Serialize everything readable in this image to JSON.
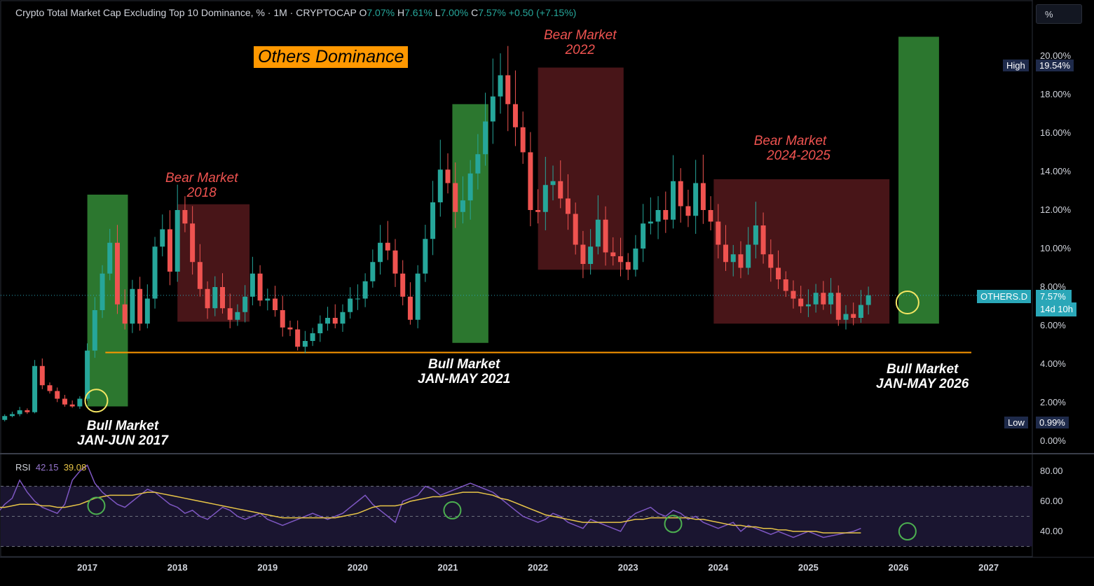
{
  "header": {
    "symbol_desc": "Crypto Total Market Cap Excluding Top 10 Dominance, % · 1M · CRYPTOCAP",
    "o_label": "O",
    "o_value": "7.07%",
    "h_label": "H",
    "h_value": "7.61%",
    "l_label": "L",
    "l_value": "7.00%",
    "c_label": "C",
    "c_value": "7.57%",
    "change": "+0.50 (+7.15%)"
  },
  "scale_button": "%",
  "title_badge": "Others Dominance",
  "annotations": {
    "bear_2018": [
      "Bear Market",
      "2018"
    ],
    "bear_2022": [
      "Bear Market",
      "2022"
    ],
    "bear_2024": [
      "Bear Market",
      "2024-2025"
    ],
    "bull_2017": [
      "Bull Market",
      "JAN-JUN 2017"
    ],
    "bull_2021": [
      "Bull Market",
      "JAN-MAY 2021"
    ],
    "bull_2026": [
      "Bull Market",
      "JAN-MAY 2026"
    ]
  },
  "tags": {
    "high_label": "High",
    "high_value": "19.54%",
    "low_label": "Low",
    "low_value": "0.99%",
    "symbol": "OTHERS.D",
    "last_value": "7.57%",
    "countdown": "14d 10h"
  },
  "rsi": {
    "label": "RSI",
    "value": "42.15",
    "ma_value": "39.08"
  },
  "colors": {
    "up": "#26a69a",
    "down": "#ef5350",
    "bull_zone": "#2e7d32",
    "bear_zone": "#5a1a1e",
    "support": "#ff9800",
    "rsi": "#7e57c2",
    "rsi_ma": "#e8c547",
    "circle": "#f5e663"
  },
  "chart_data": [
    {
      "type": "candlestick",
      "title": "Crypto Total Market Cap Excluding Top 10 Dominance",
      "interval": "1M",
      "y_unit": "%",
      "ylim": [
        0,
        21
      ],
      "y_ticks": [
        "20.00%",
        "18.00%",
        "16.00%",
        "14.00%",
        "12.00%",
        "10.00%",
        "8.00%",
        "6.00%",
        "4.00%",
        "2.00%",
        "0.00%"
      ],
      "x_ticks": [
        "2017",
        "2018",
        "2019",
        "2020",
        "2021",
        "2022",
        "2023",
        "2024",
        "2025",
        "2026",
        "2027"
      ],
      "x_tick_values": [
        2017,
        2018,
        2019,
        2020,
        2021,
        2022,
        2023,
        2024,
        2025,
        2026,
        2027
      ],
      "start": 2016.0,
      "closes": [
        1.1,
        1.3,
        1.4,
        1.6,
        1.5,
        3.9,
        2.9,
        2.6,
        2.2,
        1.9,
        1.8,
        2.2,
        4.7,
        6.8,
        8.7,
        10.3,
        7.1,
        6.1,
        7.9,
        6.1,
        7.4,
        10.1,
        11.0,
        8.8,
        12.0,
        11.3,
        9.3,
        7.9,
        6.9,
        8.0,
        6.9,
        6.3,
        6.7,
        7.5,
        8.7,
        7.3,
        7.4,
        6.8,
        5.9,
        5.8,
        4.9,
        5.2,
        5.6,
        6.1,
        6.4,
        6.1,
        6.7,
        7.4,
        7.4,
        8.3,
        9.3,
        10.3,
        9.9,
        8.7,
        7.5,
        6.3,
        8.7,
        10.5,
        12.4,
        14.1,
        13.4,
        11.9,
        12.5,
        13.9,
        14.9,
        16.6,
        17.9,
        19.0,
        17.5,
        16.3,
        15.0,
        12.0,
        11.9,
        13.3,
        13.5,
        12.6,
        11.8,
        10.2,
        9.2,
        10.1,
        11.5,
        9.8,
        9.6,
        9.3,
        8.9,
        10.0,
        11.3,
        11.4,
        12.0,
        11.5,
        13.5,
        12.2,
        11.7,
        13.4,
        12.0,
        11.4,
        10.2,
        9.3,
        9.7,
        9.0,
        10.2,
        11.2,
        9.7,
        9.0,
        8.4,
        7.8,
        7.4,
        7.0,
        7.1,
        7.7,
        7.1,
        7.7,
        6.3,
        6.6,
        6.4,
        7.07,
        7.57
      ],
      "low": 0.99,
      "high": 19.54,
      "support_level": 4.6,
      "zones": [
        {
          "kind": "bull",
          "from": 2017.0,
          "to": 2017.45,
          "low": 1.8,
          "high": 12.8
        },
        {
          "kind": "bear",
          "from": 2018.0,
          "to": 2018.8,
          "low": 6.2,
          "high": 12.3
        },
        {
          "kind": "bull",
          "from": 2021.05,
          "to": 2021.45,
          "low": 5.1,
          "high": 17.5
        },
        {
          "kind": "bear",
          "from": 2022.0,
          "to": 2022.95,
          "low": 8.9,
          "high": 19.4
        },
        {
          "kind": "bear",
          "from": 2023.95,
          "to": 2025.9,
          "low": 6.1,
          "high": 13.6
        },
        {
          "kind": "bull",
          "from": 2026.0,
          "to": 2026.45,
          "low": 6.1,
          "high": 21.0
        }
      ],
      "highlight_points": [
        {
          "x": 2017.1,
          "y": 2.1
        },
        {
          "x": 2026.1,
          "y": 7.2
        }
      ]
    },
    {
      "type": "line",
      "title": "RSI",
      "ylim": [
        25,
        90
      ],
      "y_ticks": [
        "80.00",
        "60.00",
        "40.00"
      ],
      "rsi": [
        52,
        58,
        62,
        74,
        66,
        60,
        56,
        54,
        52,
        58,
        74,
        80,
        84,
        72,
        66,
        62,
        58,
        56,
        60,
        64,
        68,
        66,
        62,
        58,
        56,
        52,
        54,
        50,
        48,
        52,
        56,
        54,
        50,
        48,
        50,
        52,
        48,
        46,
        44,
        46,
        48,
        50,
        52,
        50,
        48,
        50,
        52,
        56,
        60,
        64,
        58,
        54,
        50,
        46,
        60,
        62,
        64,
        70,
        68,
        64,
        66,
        68,
        70,
        72,
        70,
        68,
        66,
        62,
        58,
        54,
        50,
        48,
        46,
        48,
        52,
        50,
        46,
        44,
        42,
        48,
        46,
        44,
        42,
        40,
        48,
        52,
        54,
        56,
        52,
        50,
        54,
        52,
        48,
        50,
        46,
        44,
        42,
        44,
        46,
        40,
        44,
        42,
        40,
        38,
        40,
        38,
        36,
        38,
        40,
        38,
        36,
        37,
        38,
        39,
        40,
        42
      ],
      "rsi_ma": [
        56,
        56,
        57,
        58,
        58,
        58,
        57,
        57,
        56,
        56,
        57,
        58,
        60,
        62,
        63,
        64,
        64,
        64,
        64,
        65,
        66,
        66,
        65,
        64,
        63,
        62,
        61,
        60,
        59,
        58,
        57,
        56,
        55,
        54,
        53,
        52,
        51,
        50,
        49,
        49,
        49,
        49,
        49,
        49,
        49,
        49,
        50,
        51,
        52,
        54,
        56,
        57,
        57,
        57,
        58,
        60,
        61,
        62,
        63,
        63,
        64,
        65,
        66,
        66,
        66,
        65,
        64,
        62,
        61,
        59,
        57,
        55,
        53,
        51,
        50,
        49,
        48,
        47,
        46,
        46,
        46,
        46,
        46,
        46,
        47,
        48,
        48,
        49,
        49,
        49,
        49,
        49,
        49,
        48,
        48,
        47,
        46,
        45,
        44,
        44,
        43,
        43,
        42,
        42,
        41,
        41,
        40,
        40,
        40,
        40,
        39,
        39,
        39,
        39,
        39,
        39
      ],
      "highlight_points": [
        {
          "x": 2017.1,
          "y": 57
        },
        {
          "x": 2021.05,
          "y": 54
        },
        {
          "x": 2023.5,
          "y": 45
        },
        {
          "x": 2026.1,
          "y": 40
        }
      ]
    }
  ]
}
